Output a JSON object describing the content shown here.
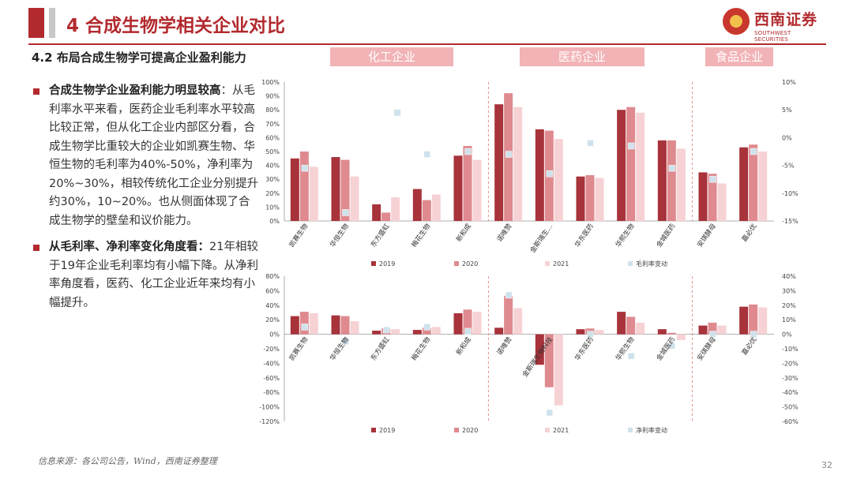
{
  "header": {
    "title": "4 合成生物学相关企业对比",
    "subtitle": "4.2 布局合成生物学可提高企业盈利能力"
  },
  "logo": {
    "cn": "西南证券",
    "en": "SOUTHWEST SECURITIES"
  },
  "bullets": [
    {
      "bold": "合成生物学企业盈利能力明显较高",
      "text": "：从毛利率水平来看，医药企业毛利率水平较高比较正常，但从化工企业内部区分看，合成生物学比重较大的企业如凯赛生物、华恒生物的毛利率为40%-50%，净利率为20%~30%，相较传统化工企业分别提升约30%，10~20%。也从侧面体现了合成生物学的壁垒和议价能力。"
    },
    {
      "bold": "从毛利率、净利率变化角度看：",
      "text": "21年相较于19年企业毛利率均有小幅下降。从净利率角度看，医药、化工企业近年来均有小幅提升。"
    }
  ],
  "categories_boxes": [
    "化工企业",
    "医药企业",
    "食品企业"
  ],
  "footer": "信息来源：各公司公告，Wind，西南证券整理",
  "page_number": "32",
  "colors": {
    "s2019": "#a8333b",
    "s2020": "#df8a8f",
    "s2021": "#f6d2d4",
    "marker": "#cfe2ec",
    "accent": "#b22a2e"
  },
  "chart_data": [
    {
      "type": "bar",
      "categories": [
        "凯赛生物",
        "华恒生物",
        "东方盛虹",
        "梅花生物",
        "新和成",
        "诺唯赞",
        "金斯瑞生…",
        "华东医药",
        "华熙生物",
        "金城医药",
        "安琪酵母",
        "嘉必优"
      ],
      "series": [
        {
          "name": "2019",
          "values": [
            45,
            46,
            12,
            23,
            47,
            84,
            66,
            32,
            80,
            58,
            35,
            53
          ]
        },
        {
          "name": "2020",
          "values": [
            50,
            44,
            6,
            15,
            54,
            92,
            65,
            33,
            82,
            58,
            34,
            55
          ]
        },
        {
          "name": "2021",
          "values": [
            39,
            32,
            17,
            19,
            44,
            82,
            59,
            31,
            78,
            52,
            27,
            50
          ]
        }
      ],
      "markers": {
        "name": "毛利率变动",
        "values": [
          -5.5,
          -13.5,
          null,
          -3,
          -2.5,
          -3,
          -6.5,
          -1,
          -1.5,
          -5.5,
          -7.5,
          -2.5
        ]
      },
      "y_ticks": [
        "0%",
        "10%",
        "20%",
        "30%",
        "40%",
        "50%",
        "60%",
        "70%",
        "80%",
        "90%",
        "100%"
      ],
      "y2_ticks": [
        "-15%",
        "-10%",
        "-5%",
        "0%",
        "5%",
        "10%"
      ],
      "ylim": [
        0,
        100
      ],
      "y2lim": [
        -15,
        10
      ],
      "legend": [
        "2019",
        "2020",
        "2021",
        "毛利率变动"
      ],
      "extra_marker": {
        "category_index": 2,
        "value": 4.5
      }
    },
    {
      "type": "bar",
      "categories": [
        "凯赛生物",
        "华恒生物",
        "东方盛虹",
        "梅花生物",
        "新和成",
        "诺唯赞",
        "金斯瑞生物科技",
        "华东医药",
        "华熙生物",
        "金城医药",
        "安琪酵母",
        "嘉必优"
      ],
      "series": [
        {
          "name": "2019",
          "values": [
            25,
            26,
            5,
            6,
            29,
            9,
            -42,
            7,
            31,
            7,
            12,
            38
          ]
        },
        {
          "name": "2020",
          "values": [
            31,
            25,
            8,
            9,
            34,
            53,
            -73,
            8,
            24,
            2,
            16,
            41
          ]
        },
        {
          "name": "2021",
          "values": [
            29,
            18,
            7,
            10,
            31,
            36,
            -98,
            6,
            16,
            -8,
            12,
            37
          ]
        }
      ],
      "markers": {
        "name": "净利率变动",
        "values": [
          5,
          -5,
          3,
          5,
          2,
          27,
          -54,
          0,
          -15,
          -8,
          0,
          0
        ]
      },
      "y_ticks": [
        "-120%",
        "-100%",
        "-80%",
        "-60%",
        "-40%",
        "-20%",
        "0%",
        "20%",
        "40%",
        "60%",
        "80%"
      ],
      "y2_ticks": [
        "-60%",
        "-50%",
        "-40%",
        "-30%",
        "-20%",
        "-10%",
        "0%",
        "10%",
        "20%",
        "30%",
        "40%"
      ],
      "ylim": [
        -120,
        80
      ],
      "y2lim": [
        -60,
        40
      ],
      "legend": [
        "2019",
        "2020",
        "2021",
        "净利率变动"
      ]
    }
  ]
}
